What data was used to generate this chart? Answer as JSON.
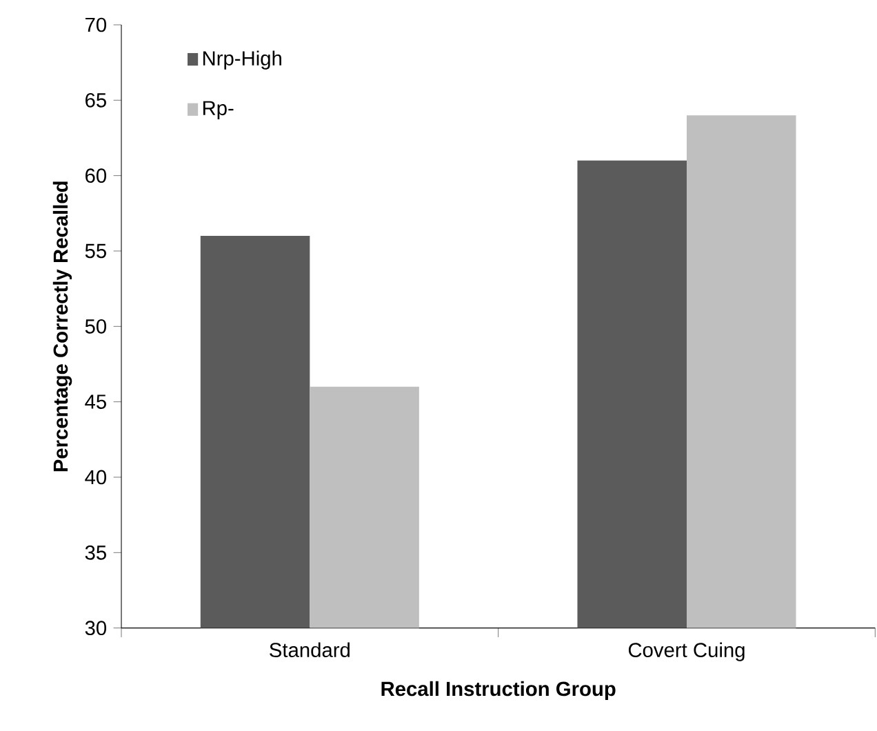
{
  "chart_data": {
    "type": "bar",
    "xlabel": "Recall Instruction Group",
    "ylabel": "Percentage Correctly Recalled",
    "categories": [
      "Standard",
      "Covert Cuing"
    ],
    "series": [
      {
        "name": "Nrp-High",
        "color": "#5b5b5b",
        "values": [
          56,
          61
        ]
      },
      {
        "name": "Rp-",
        "color": "#bfbfbf",
        "values": [
          46,
          64
        ]
      }
    ],
    "ylim": [
      30,
      70
    ],
    "yticks": [
      30,
      35,
      40,
      45,
      50,
      55,
      60,
      65,
      70
    ],
    "legend": "top left"
  }
}
